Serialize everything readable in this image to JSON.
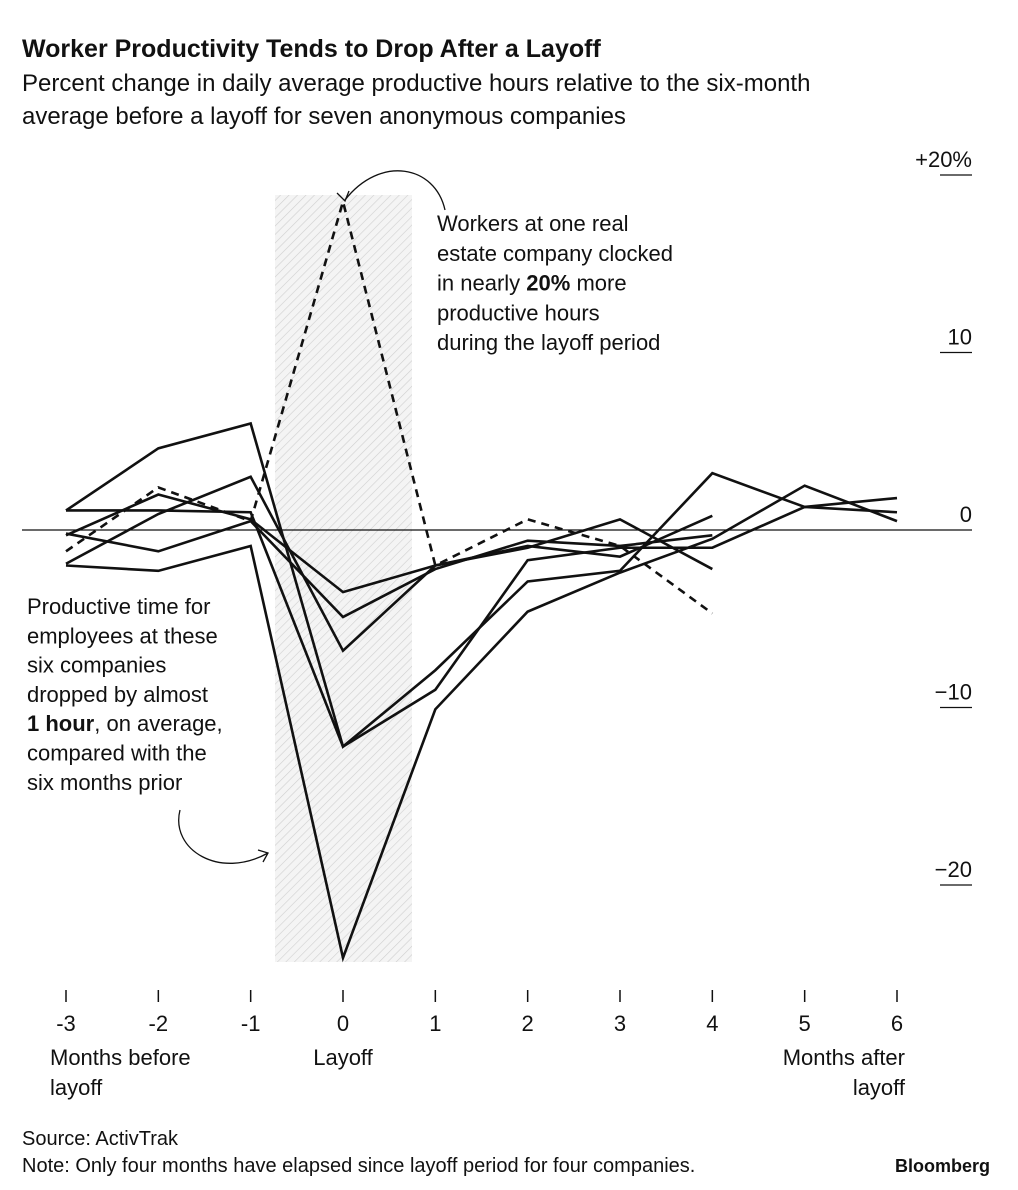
{
  "chart_data": {
    "type": "line",
    "title": "Worker Productivity Tends to Drop After a Layoff",
    "subtitle": [
      "Percent change in daily average productive hours relative to the six-month",
      "average before a layoff for seven anonymous companies"
    ],
    "x": [
      -3,
      -2,
      -1,
      0,
      1,
      2,
      3,
      4,
      5,
      6
    ],
    "xlim": [
      -3,
      6
    ],
    "xticks": [
      -3,
      -2,
      -1,
      0,
      1,
      2,
      3,
      4,
      5,
      6
    ],
    "ylim": [
      -25,
      20
    ],
    "yticks": [
      {
        "value": 20,
        "label": "+20%"
      },
      10,
      0,
      {
        "value": -10,
        "label": "−10"
      },
      {
        "value": -20,
        "label": "−20"
      }
    ],
    "series": [
      {
        "color": "#111111",
        "dashed": true,
        "values": [
          -1.2,
          2.4,
          0.5,
          18.5,
          -2.0,
          0.6,
          -0.9,
          -4.7,
          null,
          null
        ]
      },
      {
        "color": "#111111",
        "dashed": false,
        "values": [
          1.1,
          4.6,
          6.0,
          -12.2,
          -7.9,
          -2.9,
          -2.3,
          3.2,
          1.3,
          1.8
        ]
      },
      {
        "color": "#111111",
        "dashed": false,
        "values": [
          -2.0,
          -2.3,
          -0.9,
          -24.1,
          -10.1,
          -4.6,
          -2.4,
          -0.5,
          2.5,
          0.5
        ]
      },
      {
        "color": "#111111",
        "dashed": false,
        "values": [
          1.1,
          1.1,
          1.0,
          -12.2,
          -9.0,
          -1.7,
          -1.0,
          -1.0,
          1.3,
          1.0
        ]
      },
      {
        "color": "#111111",
        "dashed": false,
        "values": [
          -0.3,
          2.0,
          0.6,
          -3.5,
          -2.0,
          -1.0,
          0.6,
          -2.2,
          null,
          null
        ]
      },
      {
        "color": "#111111",
        "dashed": false,
        "values": [
          -0.2,
          -1.2,
          0.5,
          -4.9,
          -2.2,
          -0.6,
          -0.9,
          -0.3,
          null,
          null
        ]
      },
      {
        "color": "#111111",
        "dashed": false,
        "values": [
          -1.9,
          0.9,
          3.0,
          -6.8,
          -2.0,
          -0.9,
          -1.5,
          0.8,
          null,
          null
        ]
      }
    ],
    "x_labels": [
      [
        "Months before",
        "layoff"
      ],
      [
        "Layoff"
      ],
      [
        "Months after",
        "layoff"
      ]
    ],
    "annotations": [
      [
        [
          {
            "text": "Workers at one real",
            "bold": false
          }
        ],
        [
          {
            "text": "estate company clocked",
            "bold": false
          }
        ],
        [
          {
            "text": "in nearly ",
            "bold": false
          },
          {
            "text": "20%",
            "bold": true
          },
          {
            "text": " more",
            "bold": false
          }
        ],
        [
          {
            "text": "productive hours",
            "bold": false
          }
        ],
        [
          {
            "text": "during the layoff period",
            "bold": false
          }
        ]
      ],
      [
        [
          {
            "text": "Productive time for",
            "bold": false
          }
        ],
        [
          {
            "text": "employees at these",
            "bold": false
          }
        ],
        [
          {
            "text": "six companies",
            "bold": false
          }
        ],
        [
          {
            "text": "dropped by almost",
            "bold": false
          }
        ],
        [
          {
            "text": "1 hour",
            "bold": true
          },
          {
            "text": ", on average,",
            "bold": false
          }
        ],
        [
          {
            "text": "compared with the",
            "bold": false
          }
        ],
        [
          {
            "text": "six months prior",
            "bold": false
          }
        ]
      ]
    ],
    "source": "Source: ActivTrak",
    "note": "Note: Only four months have elapsed since layoff period for four companies.",
    "brand": "Bloomberg"
  }
}
